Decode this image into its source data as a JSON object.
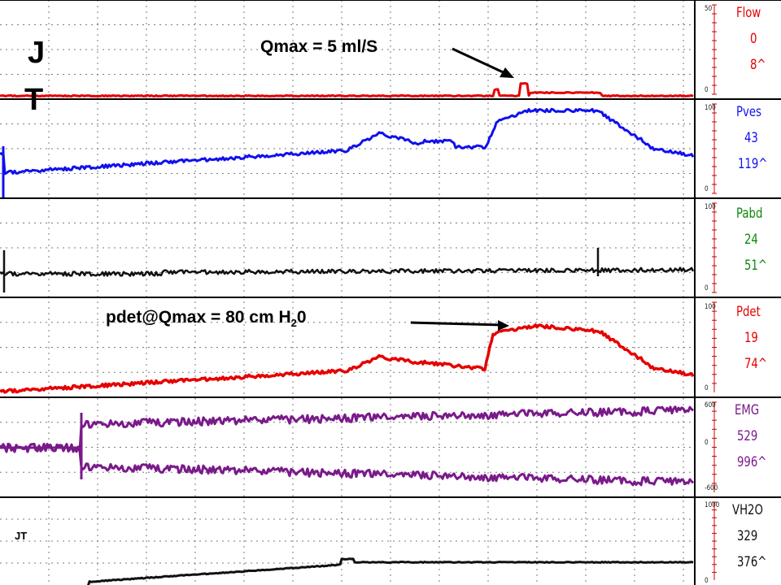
{
  "chart_data": {
    "type": "line",
    "title": "",
    "xlabel": "",
    "grid": true,
    "annotations": {
      "qmax": "Qmax = 5 ml/S",
      "pdet_prefix": "pdet@Qmax = 80 cm H",
      "pdet_sub": "2",
      "pdet_suffix": "0",
      "initials_big_1": "J",
      "initials_big_2": "T",
      "initials_small": "JT"
    },
    "channels": [
      {
        "name": "Flow",
        "v1": "0",
        "v2": "8^",
        "scale_top": "50",
        "scale_bottom": "0",
        "color": "#e60000",
        "label_color": "#e60000"
      },
      {
        "name": "Pves",
        "v1": "43",
        "v2": "119^",
        "scale_top": "100",
        "scale_bottom": "0",
        "color": "#1010ee",
        "label_color": "#1010ee"
      },
      {
        "name": "Pabd",
        "v1": "24",
        "v2": "51^",
        "scale_top": "100",
        "scale_bottom": "0",
        "color": "#111111",
        "label_color": "#0a8a0a"
      },
      {
        "name": "Pdet",
        "v1": "19",
        "v2": "74^",
        "scale_top": "100",
        "scale_bottom": "0",
        "color": "#e60000",
        "label_color": "#e60000"
      },
      {
        "name": "EMG",
        "v1": "529",
        "v2": "996^",
        "scale_top": "600",
        "scale_mid": "0",
        "scale_bottom": "-600",
        "color": "#7a1a8a",
        "label_color": "#7a1a8a"
      },
      {
        "name": "VH2O",
        "v1": "329",
        "v2": "376^",
        "scale_top": "1000",
        "scale_bottom": "0",
        "color": "#111111",
        "label_color": "#111111"
      }
    ]
  }
}
